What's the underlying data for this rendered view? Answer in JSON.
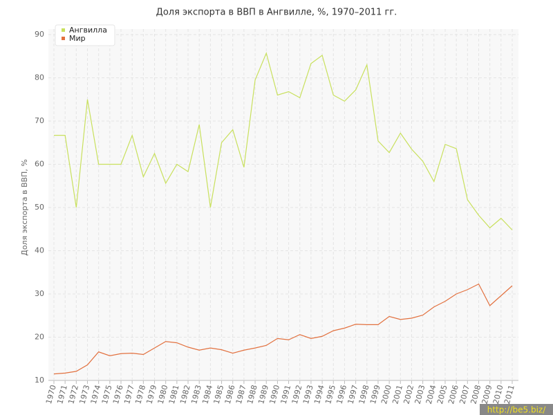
{
  "chart_data": {
    "type": "line",
    "title": "Доля экспорта в ВВП в Ангвилле, %, 1970–2011 гг.",
    "y_label": "Доля экспорта в ВВП, %",
    "categories": [
      "1970",
      "1971",
      "1972",
      "1973",
      "1974",
      "1975",
      "1976",
      "1977",
      "1978",
      "1979",
      "1980",
      "1981",
      "1982",
      "1983",
      "1984",
      "1985",
      "1986",
      "1987",
      "1988",
      "1989",
      "1990",
      "1991",
      "1992",
      "1993",
      "1994",
      "1995",
      "1996",
      "1997",
      "1998",
      "1999",
      "2000",
      "2001",
      "2002",
      "2003",
      "2004",
      "2005",
      "2006",
      "2007",
      "2008",
      "2009",
      "2010",
      "2011"
    ],
    "series": [
      {
        "name": "Ангвилла",
        "color": "#c8e05c",
        "values": [
          66.7,
          66.7,
          50,
          75,
          60,
          60,
          60,
          66.7,
          57.1,
          62.5,
          55.6,
          60,
          58.3,
          69.2,
          50,
          65,
          68,
          59.3,
          79.5,
          85.7,
          76,
          76.8,
          75.4,
          83.3,
          85.2,
          76,
          74.6,
          77.2,
          83,
          65.4,
          62.7,
          67.2,
          63.5,
          60.7,
          56,
          64.6,
          63.6,
          51.8,
          48.2,
          45.3,
          47.5,
          44.8
        ]
      },
      {
        "name": "Мир",
        "color": "#e2703e",
        "values": [
          11.5,
          11.7,
          12.1,
          13.6,
          16.6,
          15.7,
          16.2,
          16.3,
          16,
          17.5,
          19,
          18.7,
          17.7,
          17,
          17.5,
          17.1,
          16.3,
          17,
          17.5,
          18.1,
          19.7,
          19.4,
          20.6,
          19.7,
          20.2,
          21.5,
          22.1,
          23,
          22.9,
          22.9,
          24.8,
          24.1,
          24.4,
          25.1,
          27,
          28.3,
          30,
          31,
          32.3,
          27.3,
          29.6,
          31.9
        ]
      }
    ],
    "ylim": [
      10,
      90
    ],
    "yticks": [
      10,
      20,
      30,
      40,
      50,
      60,
      70,
      80,
      90
    ],
    "grid": true,
    "legend": "top-left",
    "watermark": "http://be5.biz/"
  }
}
